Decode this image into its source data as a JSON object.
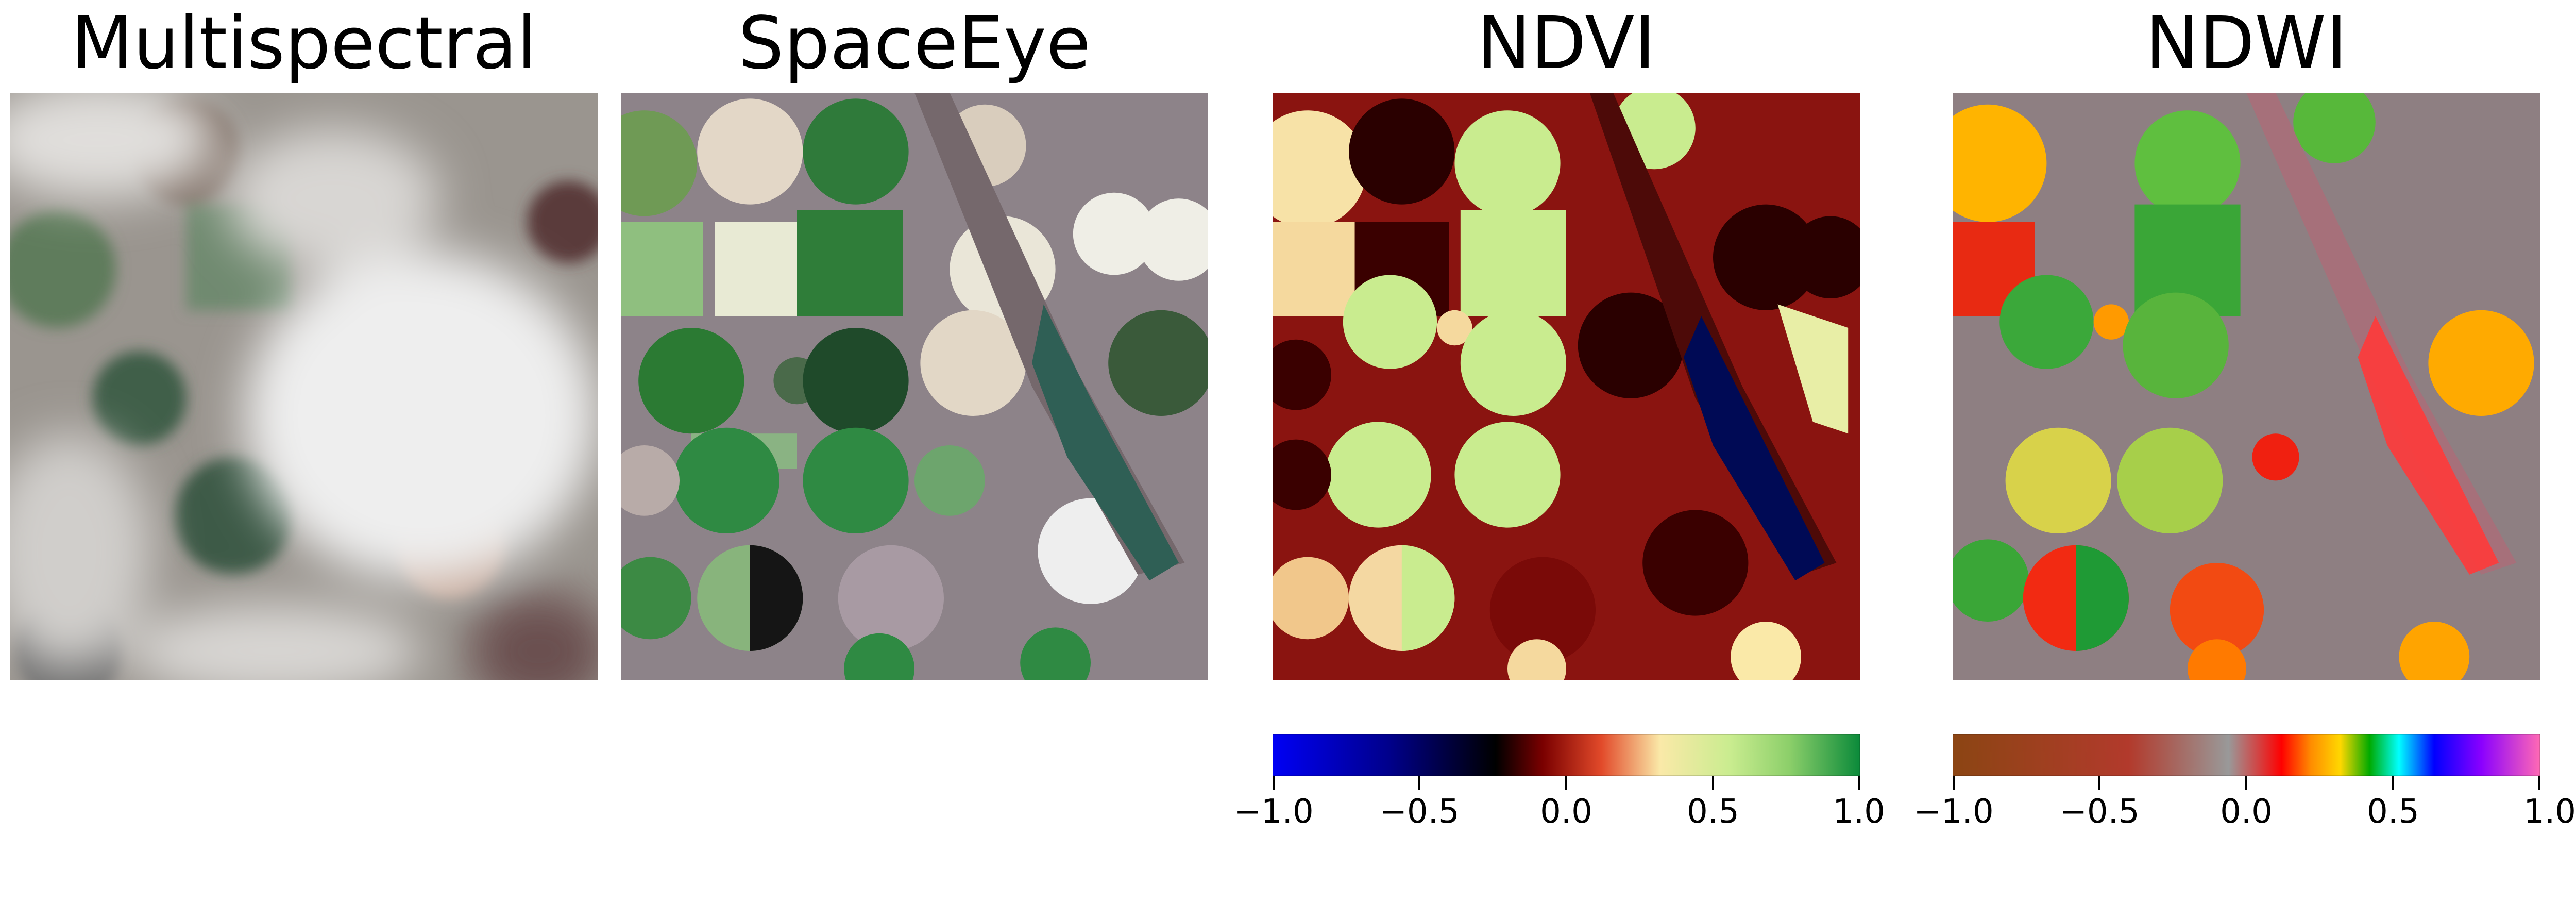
{
  "panels": [
    {
      "title": "Multispectral",
      "image": "cloudy-multispectral-satellite-image"
    },
    {
      "title": "SpaceEye",
      "image": "cloud-free-reconstructed-satellite-image"
    },
    {
      "title": "NDVI",
      "image": "ndvi-index-map"
    },
    {
      "title": "NDWI",
      "image": "ndwi-index-map"
    }
  ],
  "colorbars": {
    "ndvi": {
      "ticks": [
        "−1.0",
        "−0.5",
        "0.0",
        "0.5",
        "1.0"
      ],
      "range": [
        -1.0,
        1.0
      ],
      "colors": [
        "#0000f5",
        "#00008a",
        "#000000",
        "#7a0000",
        "#e24a2a",
        "#fae9a8",
        "#c9ec8f",
        "#8ccf6a",
        "#0b8a3a"
      ]
    },
    "ndwi": {
      "ticks": [
        "−1.0",
        "−0.5",
        "0.0",
        "0.5",
        "1.0"
      ],
      "range": [
        -1.0,
        1.0
      ],
      "colors": [
        "#8b4513",
        "#b23a2c",
        "#999999",
        "#ff0000",
        "#ff8c00",
        "#ffd700",
        "#00aa00",
        "#00ffff",
        "#0000ff",
        "#8a00ff",
        "#ff69b4"
      ]
    }
  }
}
